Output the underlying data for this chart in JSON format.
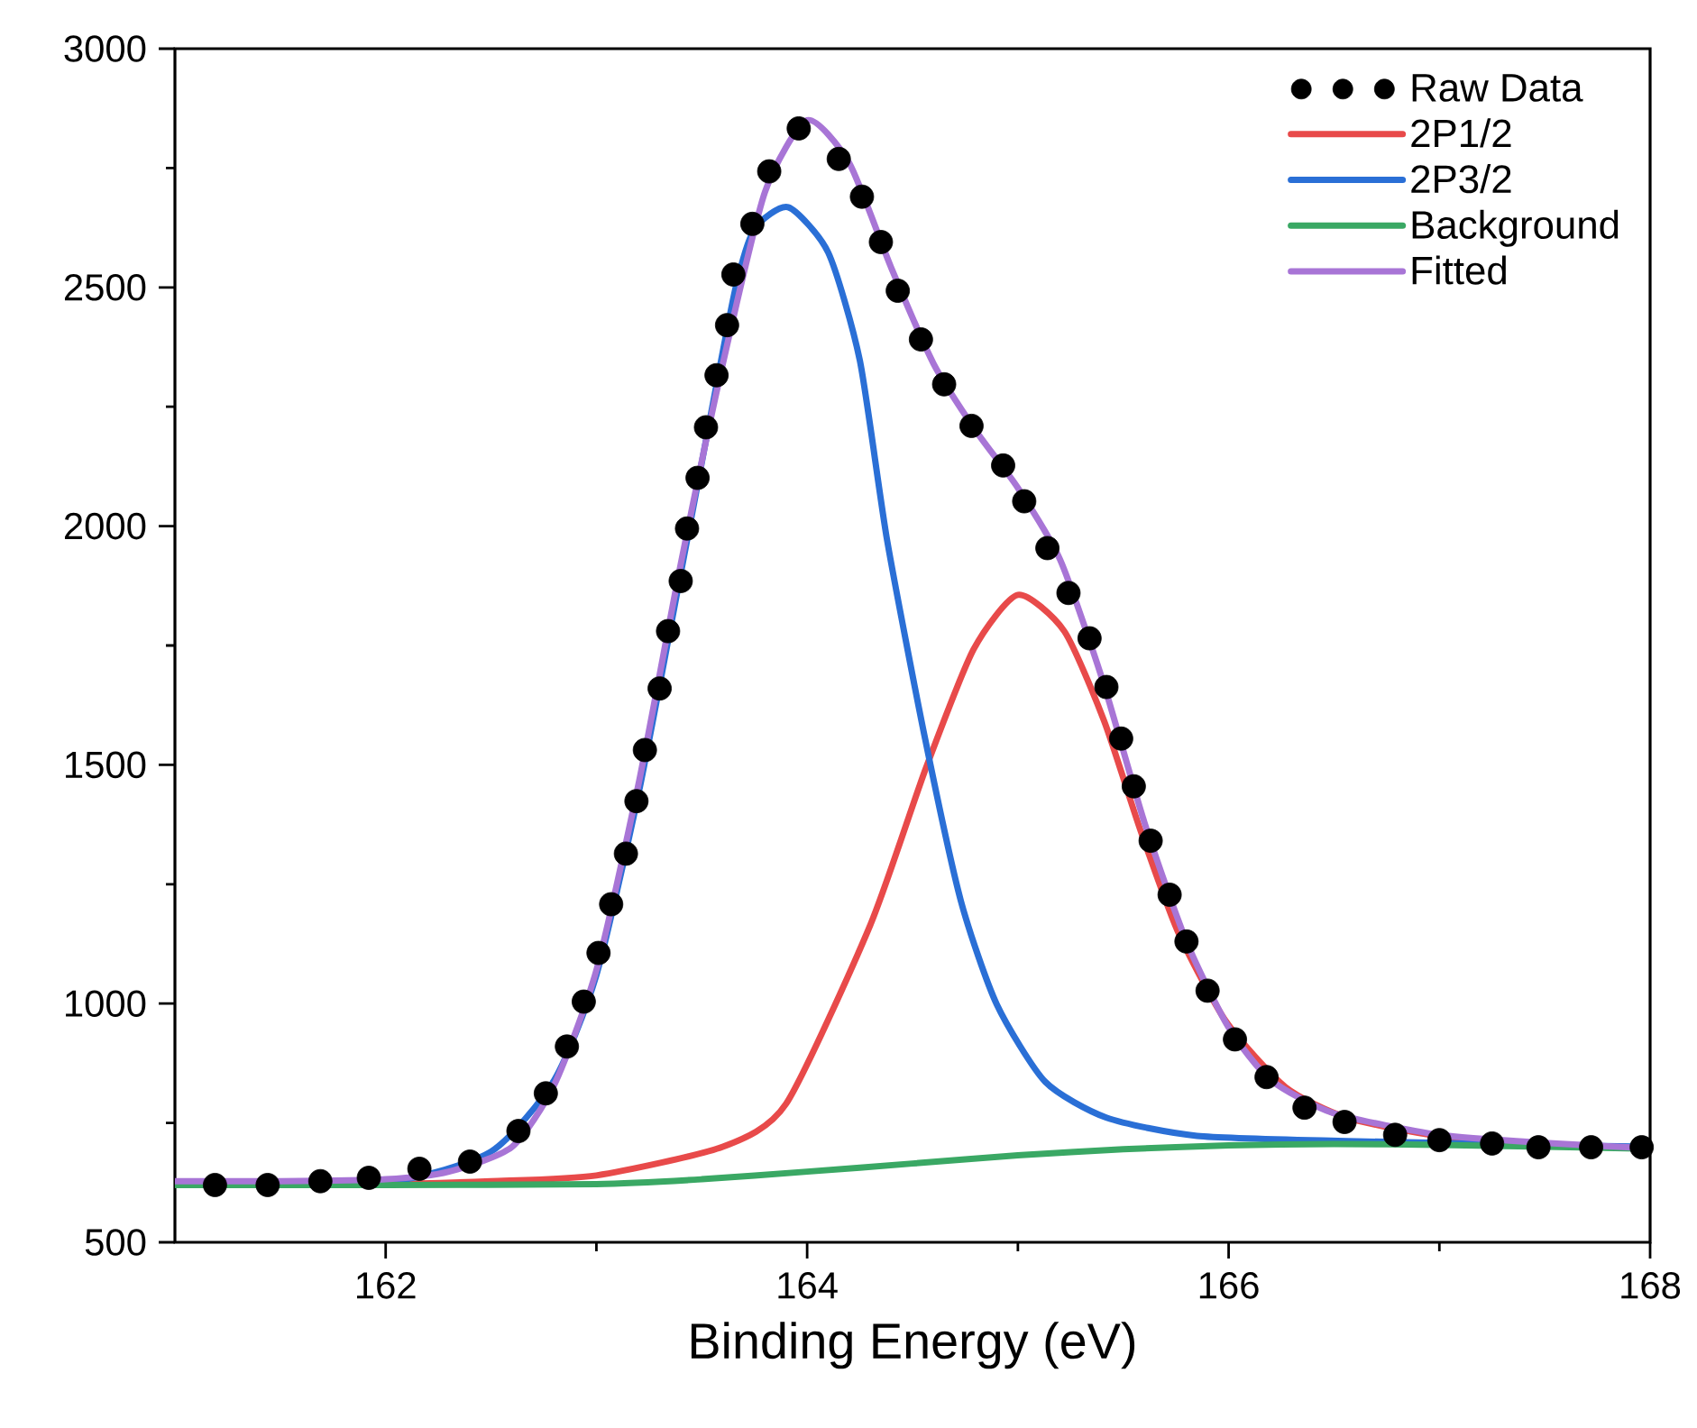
{
  "chart_data": {
    "type": "line",
    "xlabel": "Binding Energy (eV)",
    "xlim": [
      161,
      168
    ],
    "xticks": [
      162,
      164,
      166,
      168
    ],
    "ylim": [
      500,
      3000
    ],
    "yticks": [
      500,
      1000,
      1500,
      2000,
      2500,
      3000
    ],
    "grid": false,
    "legend": "top right",
    "series": [
      {
        "name": "Raw Data",
        "type": "scatter",
        "marker": "circle",
        "color": "#000000",
        "x": [
          161.19,
          161.44,
          161.69,
          161.92,
          162.16,
          162.4,
          162.63,
          162.76,
          162.86,
          162.94,
          163.01,
          163.07,
          163.14,
          163.19,
          163.23,
          163.3,
          163.34,
          163.4,
          163.43,
          163.48,
          163.52,
          163.57,
          163.62,
          163.65,
          163.74,
          163.82,
          163.96,
          164.15,
          164.26,
          164.35,
          164.43,
          164.54,
          164.65,
          164.78,
          164.93,
          165.03,
          165.14,
          165.24,
          165.34,
          165.42,
          165.49,
          165.55,
          165.63,
          165.72,
          165.8,
          165.9,
          166.03,
          166.18,
          166.36,
          166.55,
          166.79,
          167.0,
          167.25,
          167.47,
          167.72,
          167.96
        ],
        "values": [
          620,
          620,
          628,
          635,
          654,
          669,
          733,
          812,
          910,
          1004,
          1106,
          1208,
          1314,
          1424,
          1531,
          1660,
          1780,
          1885,
          1995,
          2101,
          2207,
          2316,
          2421,
          2527,
          2633,
          2743,
          2833,
          2769,
          2690,
          2595,
          2493,
          2391,
          2297,
          2210,
          2127,
          2052,
          1954,
          1860,
          1765,
          1663,
          1555,
          1455,
          1341,
          1228,
          1130,
          1027,
          925,
          846,
          782,
          752,
          725,
          714,
          707,
          699,
          699,
          699
        ]
      },
      {
        "name": "2P1/2",
        "color": "#e84a4a",
        "x": [
          161.0,
          162.0,
          162.5,
          163.0,
          163.6,
          163.9,
          164.3,
          164.56,
          164.79,
          165.0,
          165.22,
          165.41,
          165.58,
          165.76,
          165.99,
          166.27,
          166.56,
          166.99,
          167.5,
          168.0
        ],
        "values": [
          622,
          622,
          628,
          640,
          700,
          790,
          1165,
          1489,
          1742,
          1856,
          1780,
          1591,
          1365,
          1150,
          961,
          825,
          761,
          723,
          705,
          697
        ]
      },
      {
        "name": "2P3/2",
        "color": "#2a6fd6",
        "x": [
          161.0,
          162.0,
          162.5,
          162.8,
          163.0,
          163.2,
          163.4,
          163.55,
          163.66,
          163.75,
          163.91,
          164.1,
          164.25,
          164.38,
          164.56,
          164.73,
          164.9,
          165.13,
          165.42,
          165.85,
          166.56,
          167.0,
          168.0
        ],
        "values": [
          622,
          626,
          690,
          840,
          1060,
          1440,
          1900,
          2250,
          2498,
          2622,
          2668,
          2573,
          2347,
          1969,
          1554,
          1214,
          998,
          836,
          761,
          723,
          712,
          708,
          700
        ]
      },
      {
        "name": "Background",
        "color": "#3aa864",
        "x": [
          161.0,
          162.0,
          163.0,
          163.5,
          164.0,
          164.5,
          165.0,
          165.5,
          166.0,
          166.5,
          167.0,
          167.5,
          168.0
        ],
        "values": [
          620,
          620,
          622,
          632,
          648,
          665,
          682,
          695,
          703,
          706,
          704,
          700,
          696
        ]
      },
      {
        "name": "Fitted",
        "color": "#a875d6",
        "x": [
          161.0,
          161.5,
          162.0,
          162.3,
          162.6,
          162.8,
          163.0,
          163.2,
          163.4,
          163.6,
          163.8,
          164.0,
          164.2,
          164.4,
          164.6,
          164.8,
          165.0,
          165.2,
          165.4,
          165.6,
          165.8,
          166.0,
          166.2,
          166.5,
          167.0,
          167.5,
          168.0
        ],
        "values": [
          628,
          628,
          632,
          648,
          700,
          830,
          1070,
          1460,
          1920,
          2340,
          2700,
          2850,
          2760,
          2540,
          2340,
          2200,
          2080,
          1930,
          1680,
          1380,
          1130,
          950,
          840,
          770,
          725,
          708,
          697
        ]
      }
    ]
  }
}
